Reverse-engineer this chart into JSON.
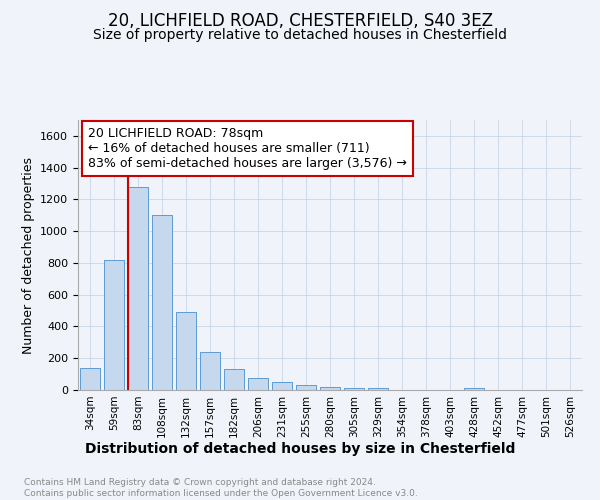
{
  "title1": "20, LICHFIELD ROAD, CHESTERFIELD, S40 3EZ",
  "title2": "Size of property relative to detached houses in Chesterfield",
  "xlabel": "Distribution of detached houses by size in Chesterfield",
  "ylabel": "Number of detached properties",
  "categories": [
    "34sqm",
    "59sqm",
    "83sqm",
    "108sqm",
    "132sqm",
    "157sqm",
    "182sqm",
    "206sqm",
    "231sqm",
    "255sqm",
    "280sqm",
    "305sqm",
    "329sqm",
    "354sqm",
    "378sqm",
    "403sqm",
    "428sqm",
    "452sqm",
    "477sqm",
    "501sqm",
    "526sqm"
  ],
  "values": [
    140,
    820,
    1280,
    1100,
    490,
    240,
    130,
    75,
    50,
    30,
    20,
    10,
    10,
    0,
    0,
    0,
    10,
    0,
    0,
    0,
    0
  ],
  "bar_color": "#c5d8ed",
  "bar_edge_color": "#5b9bd5",
  "vline_color": "#cc0000",
  "annotation_box_color": "#cc0000",
  "annotation_text": "20 LICHFIELD ROAD: 78sqm\n← 16% of detached houses are smaller (711)\n83% of semi-detached houses are larger (3,576) →",
  "ylim": [
    0,
    1700
  ],
  "yticks": [
    0,
    200,
    400,
    600,
    800,
    1000,
    1200,
    1400,
    1600
  ],
  "footnote": "Contains HM Land Registry data © Crown copyright and database right 2024.\nContains public sector information licensed under the Open Government Licence v3.0.",
  "background_color": "#f0f4fa",
  "plot_bg_color": "#f0f4fa",
  "grid_color": "#c8d4e8"
}
